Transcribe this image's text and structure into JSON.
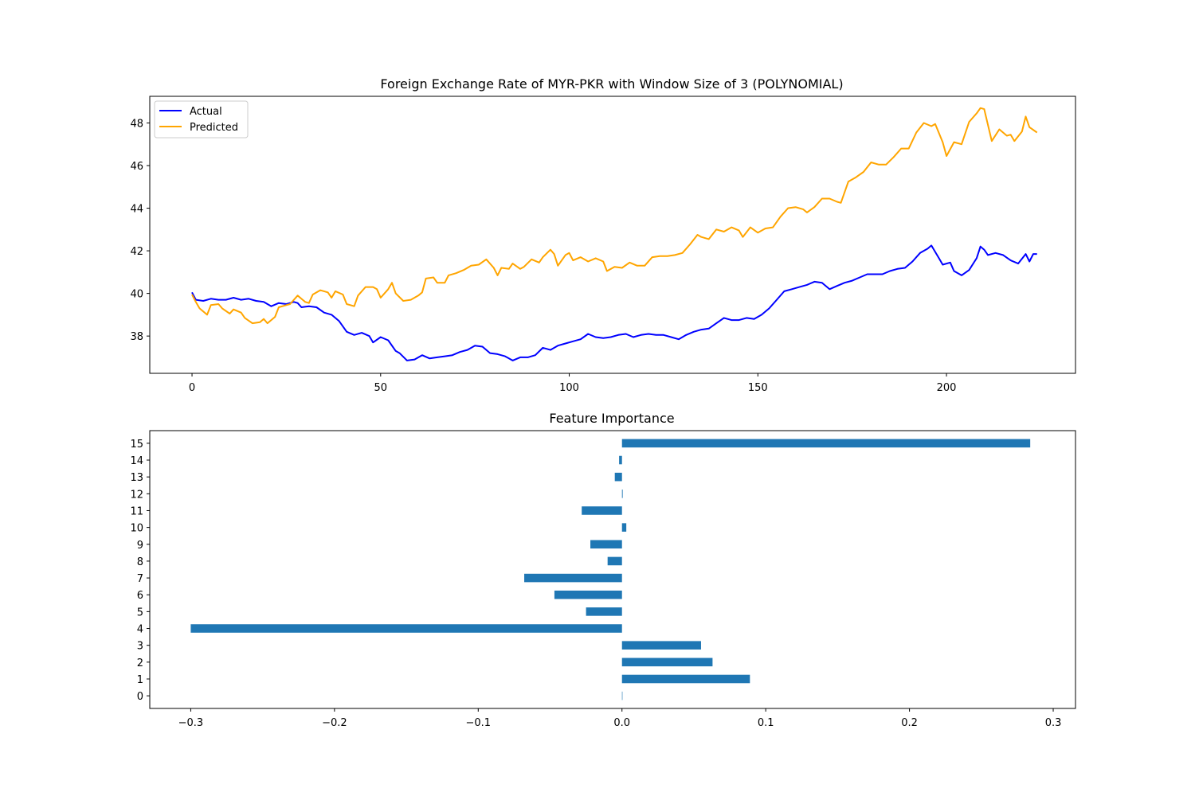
{
  "chart_data": [
    {
      "type": "line",
      "title": "Foreign Exchange Rate of MYR-PKR with Window Size of 3 (POLYNOMIAL)",
      "xlabel": "",
      "ylabel": "",
      "xlim": [
        -11.2,
        234.2
      ],
      "ylim": [
        36.25,
        49.25
      ],
      "xticks": [
        0,
        50,
        100,
        150,
        200
      ],
      "yticks": [
        38,
        40,
        42,
        44,
        46,
        48
      ],
      "grid": false,
      "legend": "top-left",
      "series": [
        {
          "name": "Actual",
          "color": "#0000ff",
          "anchors": [
            [
              0,
              40.05
            ],
            [
              1,
              39.7
            ],
            [
              3,
              39.65
            ],
            [
              5,
              39.75
            ],
            [
              7,
              39.7
            ],
            [
              9,
              39.7
            ],
            [
              11,
              39.8
            ],
            [
              13,
              39.7
            ],
            [
              15,
              39.75
            ],
            [
              17,
              39.65
            ],
            [
              19,
              39.6
            ],
            [
              21,
              39.4
            ],
            [
              23,
              39.55
            ],
            [
              25,
              39.5
            ],
            [
              27,
              39.6
            ],
            [
              28,
              39.55
            ],
            [
              29,
              39.35
            ],
            [
              31,
              39.4
            ],
            [
              33,
              39.35
            ],
            [
              35,
              39.1
            ],
            [
              37,
              39.0
            ],
            [
              39,
              38.7
            ],
            [
              41,
              38.2
            ],
            [
              43,
              38.05
            ],
            [
              45,
              38.15
            ],
            [
              47,
              38.0
            ],
            [
              48,
              37.7
            ],
            [
              50,
              37.95
            ],
            [
              52,
              37.8
            ],
            [
              54,
              37.3
            ],
            [
              55,
              37.2
            ],
            [
              57,
              36.85
            ],
            [
              59,
              36.9
            ],
            [
              61,
              37.1
            ],
            [
              63,
              36.95
            ],
            [
              65,
              37.0
            ],
            [
              67,
              37.05
            ],
            [
              69,
              37.1
            ],
            [
              71,
              37.25
            ],
            [
              73,
              37.35
            ],
            [
              75,
              37.55
            ],
            [
              77,
              37.5
            ],
            [
              79,
              37.2
            ],
            [
              81,
              37.15
            ],
            [
              83,
              37.05
            ],
            [
              85,
              36.85
            ],
            [
              87,
              37.0
            ],
            [
              89,
              37.0
            ],
            [
              91,
              37.1
            ],
            [
              93,
              37.45
            ],
            [
              95,
              37.35
            ],
            [
              97,
              37.55
            ],
            [
              99,
              37.65
            ],
            [
              101,
              37.75
            ],
            [
              103,
              37.85
            ],
            [
              105,
              38.1
            ],
            [
              107,
              37.95
            ],
            [
              109,
              37.9
            ],
            [
              111,
              37.95
            ],
            [
              113,
              38.05
            ],
            [
              115,
              38.1
            ],
            [
              117,
              37.95
            ],
            [
              119,
              38.05
            ],
            [
              121,
              38.1
            ],
            [
              123,
              38.05
            ],
            [
              125,
              38.05
            ],
            [
              127,
              37.95
            ],
            [
              129,
              37.85
            ],
            [
              131,
              38.05
            ],
            [
              133,
              38.2
            ],
            [
              135,
              38.3
            ],
            [
              137,
              38.35
            ],
            [
              139,
              38.6
            ],
            [
              141,
              38.85
            ],
            [
              143,
              38.75
            ],
            [
              145,
              38.75
            ],
            [
              147,
              38.85
            ],
            [
              149,
              38.8
            ],
            [
              151,
              39.0
            ],
            [
              153,
              39.3
            ],
            [
              155,
              39.7
            ],
            [
              157,
              40.1
            ],
            [
              159,
              40.2
            ],
            [
              161,
              40.3
            ],
            [
              163,
              40.4
            ],
            [
              165,
              40.55
            ],
            [
              167,
              40.5
            ],
            [
              169,
              40.2
            ],
            [
              171,
              40.35
            ],
            [
              173,
              40.5
            ],
            [
              175,
              40.6
            ],
            [
              177,
              40.75
            ],
            [
              179,
              40.9
            ],
            [
              181,
              40.9
            ],
            [
              183,
              40.9
            ],
            [
              185,
              41.05
            ],
            [
              187,
              41.15
            ],
            [
              189,
              41.2
            ],
            [
              191,
              41.5
            ],
            [
              193,
              41.9
            ],
            [
              195,
              42.1
            ],
            [
              196,
              42.25
            ],
            [
              198,
              41.65
            ],
            [
              199,
              41.35
            ],
            [
              201,
              41.45
            ],
            [
              202,
              41.05
            ],
            [
              204,
              40.85
            ],
            [
              206,
              41.1
            ],
            [
              208,
              41.65
            ],
            [
              209,
              42.2
            ],
            [
              210,
              42.05
            ],
            [
              211,
              41.8
            ],
            [
              213,
              41.9
            ],
            [
              215,
              41.8
            ],
            [
              217,
              41.55
            ],
            [
              219,
              41.4
            ],
            [
              221,
              41.85
            ],
            [
              222,
              41.5
            ],
            [
              223,
              41.85
            ],
            [
              224,
              41.85
            ]
          ]
        },
        {
          "name": "Predicted",
          "color": "#ffa500",
          "anchors": [
            [
              0,
              39.95
            ],
            [
              1,
              39.6
            ],
            [
              2,
              39.3
            ],
            [
              4,
              39.0
            ],
            [
              5,
              39.45
            ],
            [
              7,
              39.5
            ],
            [
              8,
              39.3
            ],
            [
              10,
              39.05
            ],
            [
              11,
              39.25
            ],
            [
              13,
              39.1
            ],
            [
              14,
              38.85
            ],
            [
              16,
              38.6
            ],
            [
              18,
              38.65
            ],
            [
              19,
              38.8
            ],
            [
              20,
              38.6
            ],
            [
              22,
              38.9
            ],
            [
              23,
              39.35
            ],
            [
              25,
              39.45
            ],
            [
              26,
              39.5
            ],
            [
              28,
              39.9
            ],
            [
              30,
              39.6
            ],
            [
              31,
              39.55
            ],
            [
              32,
              39.95
            ],
            [
              34,
              40.15
            ],
            [
              36,
              40.05
            ],
            [
              37,
              39.8
            ],
            [
              38,
              40.1
            ],
            [
              40,
              39.95
            ],
            [
              41,
              39.5
            ],
            [
              43,
              39.4
            ],
            [
              44,
              39.9
            ],
            [
              46,
              40.3
            ],
            [
              48,
              40.3
            ],
            [
              49,
              40.2
            ],
            [
              50,
              39.8
            ],
            [
              52,
              40.2
            ],
            [
              53,
              40.5
            ],
            [
              54,
              40.0
            ],
            [
              56,
              39.65
            ],
            [
              58,
              39.7
            ],
            [
              60,
              39.9
            ],
            [
              61,
              40.05
            ],
            [
              62,
              40.7
            ],
            [
              64,
              40.75
            ],
            [
              65,
              40.5
            ],
            [
              67,
              40.5
            ],
            [
              68,
              40.85
            ],
            [
              70,
              40.95
            ],
            [
              72,
              41.1
            ],
            [
              74,
              41.3
            ],
            [
              76,
              41.35
            ],
            [
              78,
              41.6
            ],
            [
              80,
              41.2
            ],
            [
              81,
              40.85
            ],
            [
              82,
              41.2
            ],
            [
              84,
              41.15
            ],
            [
              85,
              41.4
            ],
            [
              87,
              41.15
            ],
            [
              88,
              41.25
            ],
            [
              90,
              41.6
            ],
            [
              92,
              41.45
            ],
            [
              93,
              41.7
            ],
            [
              95,
              42.05
            ],
            [
              96,
              41.85
            ],
            [
              97,
              41.3
            ],
            [
              99,
              41.8
            ],
            [
              100,
              41.9
            ],
            [
              101,
              41.55
            ],
            [
              103,
              41.7
            ],
            [
              105,
              41.5
            ],
            [
              107,
              41.65
            ],
            [
              109,
              41.5
            ],
            [
              110,
              41.05
            ],
            [
              112,
              41.25
            ],
            [
              114,
              41.2
            ],
            [
              116,
              41.45
            ],
            [
              118,
              41.3
            ],
            [
              120,
              41.3
            ],
            [
              122,
              41.7
            ],
            [
              124,
              41.75
            ],
            [
              126,
              41.75
            ],
            [
              128,
              41.8
            ],
            [
              130,
              41.9
            ],
            [
              132,
              42.3
            ],
            [
              134,
              42.75
            ],
            [
              135,
              42.65
            ],
            [
              137,
              42.55
            ],
            [
              139,
              43.0
            ],
            [
              141,
              42.9
            ],
            [
              143,
              43.1
            ],
            [
              145,
              42.95
            ],
            [
              146,
              42.65
            ],
            [
              148,
              43.1
            ],
            [
              150,
              42.85
            ],
            [
              152,
              43.05
            ],
            [
              154,
              43.1
            ],
            [
              156,
              43.6
            ],
            [
              158,
              44.0
            ],
            [
              160,
              44.05
            ],
            [
              162,
              43.95
            ],
            [
              163,
              43.8
            ],
            [
              165,
              44.05
            ],
            [
              167,
              44.45
            ],
            [
              169,
              44.45
            ],
            [
              171,
              44.3
            ],
            [
              172,
              44.25
            ],
            [
              174,
              45.25
            ],
            [
              176,
              45.45
            ],
            [
              178,
              45.7
            ],
            [
              180,
              46.15
            ],
            [
              182,
              46.05
            ],
            [
              184,
              46.05
            ],
            [
              186,
              46.4
            ],
            [
              188,
              46.8
            ],
            [
              190,
              46.8
            ],
            [
              192,
              47.55
            ],
            [
              194,
              48.0
            ],
            [
              196,
              47.85
            ],
            [
              197,
              47.95
            ],
            [
              199,
              47.1
            ],
            [
              200,
              46.45
            ],
            [
              202,
              47.1
            ],
            [
              204,
              47.0
            ],
            [
              206,
              48.05
            ],
            [
              208,
              48.45
            ],
            [
              209,
              48.7
            ],
            [
              210,
              48.65
            ],
            [
              212,
              47.15
            ],
            [
              214,
              47.7
            ],
            [
              216,
              47.4
            ],
            [
              217,
              47.45
            ],
            [
              218,
              47.15
            ],
            [
              220,
              47.6
            ],
            [
              221,
              48.3
            ],
            [
              222,
              47.8
            ],
            [
              224,
              47.55
            ]
          ]
        }
      ]
    },
    {
      "type": "bar",
      "orientation": "horizontal",
      "title": "Feature Importance",
      "xlabel": "",
      "ylabel": "",
      "xlim": [
        -0.3285,
        0.3155
      ],
      "xticks": [
        -0.3,
        -0.2,
        -0.1,
        0.0,
        0.1,
        0.2,
        0.3
      ],
      "xtick_labels": [
        "−0.3",
        "−0.2",
        "−0.1",
        "0.0",
        "0.1",
        "0.2",
        "0.3"
      ],
      "grid": false,
      "color": "#1f77b4",
      "categories": [
        "0",
        "1",
        "2",
        "3",
        "4",
        "5",
        "6",
        "7",
        "8",
        "9",
        "10",
        "11",
        "12",
        "13",
        "14",
        "15"
      ],
      "values": [
        0.0,
        0.089,
        0.063,
        0.055,
        -0.3,
        -0.025,
        -0.047,
        -0.068,
        -0.01,
        -0.022,
        0.003,
        -0.028,
        0.0005,
        -0.005,
        -0.002,
        0.284
      ]
    }
  ]
}
